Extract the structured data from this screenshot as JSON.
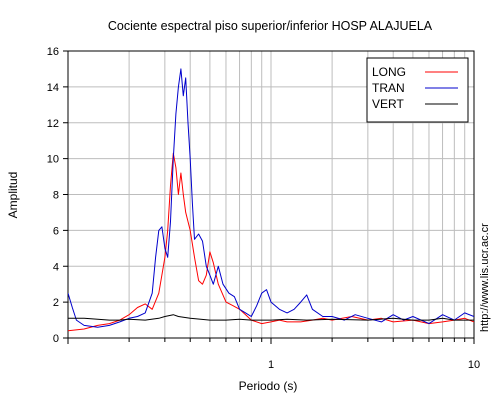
{
  "chart_data": {
    "type": "line",
    "title": "Cociente espectral piso superior/inferior  HOSP ALAJUELA",
    "xlabel": "Periodo (s)",
    "ylabel": "Amplitud",
    "xscale": "log",
    "xlim": [
      0.1,
      10
    ],
    "ylim": [
      0,
      16
    ],
    "grid": true,
    "legend_position": "top-right",
    "x_ticks": [
      {
        "value": 1,
        "label": "1"
      },
      {
        "value": 10,
        "label": "10"
      }
    ],
    "y_ticks": [
      {
        "value": 0,
        "label": "0"
      },
      {
        "value": 2,
        "label": "2"
      },
      {
        "value": 4,
        "label": "4"
      },
      {
        "value": 6,
        "label": "6"
      },
      {
        "value": 8,
        "label": "8"
      },
      {
        "value": 10,
        "label": "10"
      },
      {
        "value": 12,
        "label": "12"
      },
      {
        "value": 14,
        "label": "14"
      },
      {
        "value": 16,
        "label": "16"
      }
    ],
    "series": [
      {
        "name": "LONG",
        "color": "#ff0000",
        "points": [
          [
            0.1,
            0.4
          ],
          [
            0.12,
            0.5
          ],
          [
            0.14,
            0.7
          ],
          [
            0.16,
            0.8
          ],
          [
            0.18,
            1.0
          ],
          [
            0.2,
            1.3
          ],
          [
            0.22,
            1.7
          ],
          [
            0.24,
            1.9
          ],
          [
            0.26,
            1.6
          ],
          [
            0.28,
            2.5
          ],
          [
            0.3,
            4.5
          ],
          [
            0.31,
            6.0
          ],
          [
            0.32,
            8.5
          ],
          [
            0.33,
            10.3
          ],
          [
            0.34,
            9.5
          ],
          [
            0.35,
            8.0
          ],
          [
            0.36,
            9.2
          ],
          [
            0.37,
            8.0
          ],
          [
            0.38,
            7.0
          ],
          [
            0.4,
            6.0
          ],
          [
            0.42,
            4.5
          ],
          [
            0.44,
            3.2
          ],
          [
            0.46,
            3.0
          ],
          [
            0.48,
            3.5
          ],
          [
            0.5,
            4.8
          ],
          [
            0.52,
            4.2
          ],
          [
            0.55,
            3.0
          ],
          [
            0.6,
            2.0
          ],
          [
            0.65,
            1.8
          ],
          [
            0.7,
            1.6
          ],
          [
            0.75,
            1.3
          ],
          [
            0.8,
            1.0
          ],
          [
            0.9,
            0.8
          ],
          [
            1.0,
            0.9
          ],
          [
            1.1,
            1.0
          ],
          [
            1.2,
            0.9
          ],
          [
            1.4,
            0.9
          ],
          [
            1.6,
            1.0
          ],
          [
            1.8,
            1.1
          ],
          [
            2.0,
            1.0
          ],
          [
            2.5,
            1.2
          ],
          [
            3.0,
            1.0
          ],
          [
            3.5,
            1.1
          ],
          [
            4.0,
            0.9
          ],
          [
            5.0,
            1.0
          ],
          [
            6.0,
            0.8
          ],
          [
            7.0,
            0.9
          ],
          [
            8.0,
            1.0
          ],
          [
            9.0,
            1.1
          ],
          [
            10.0,
            0.9
          ]
        ]
      },
      {
        "name": "TRAN",
        "color": "#0000cc",
        "points": [
          [
            0.1,
            2.5
          ],
          [
            0.105,
            1.7
          ],
          [
            0.11,
            1.0
          ],
          [
            0.12,
            0.7
          ],
          [
            0.14,
            0.6
          ],
          [
            0.16,
            0.7
          ],
          [
            0.18,
            0.9
          ],
          [
            0.2,
            1.1
          ],
          [
            0.22,
            1.2
          ],
          [
            0.24,
            1.4
          ],
          [
            0.26,
            2.5
          ],
          [
            0.27,
            4.5
          ],
          [
            0.28,
            6.0
          ],
          [
            0.29,
            6.2
          ],
          [
            0.3,
            5.0
          ],
          [
            0.31,
            4.5
          ],
          [
            0.32,
            6.5
          ],
          [
            0.33,
            10.0
          ],
          [
            0.34,
            12.5
          ],
          [
            0.35,
            14.0
          ],
          [
            0.36,
            15.0
          ],
          [
            0.37,
            13.5
          ],
          [
            0.38,
            14.5
          ],
          [
            0.39,
            12.0
          ],
          [
            0.4,
            10.0
          ],
          [
            0.41,
            7.5
          ],
          [
            0.42,
            5.5
          ],
          [
            0.44,
            5.8
          ],
          [
            0.46,
            5.4
          ],
          [
            0.48,
            4.0
          ],
          [
            0.5,
            3.5
          ],
          [
            0.52,
            3.0
          ],
          [
            0.55,
            4.0
          ],
          [
            0.58,
            3.0
          ],
          [
            0.62,
            2.5
          ],
          [
            0.66,
            2.3
          ],
          [
            0.7,
            1.6
          ],
          [
            0.75,
            1.4
          ],
          [
            0.8,
            1.2
          ],
          [
            0.85,
            1.8
          ],
          [
            0.9,
            2.5
          ],
          [
            0.95,
            2.7
          ],
          [
            1.0,
            2.0
          ],
          [
            1.1,
            1.6
          ],
          [
            1.2,
            1.4
          ],
          [
            1.3,
            1.6
          ],
          [
            1.4,
            2.0
          ],
          [
            1.5,
            2.4
          ],
          [
            1.6,
            1.6
          ],
          [
            1.8,
            1.2
          ],
          [
            2.0,
            1.2
          ],
          [
            2.3,
            1.0
          ],
          [
            2.6,
            1.3
          ],
          [
            3.0,
            1.1
          ],
          [
            3.5,
            0.9
          ],
          [
            4.0,
            1.3
          ],
          [
            4.5,
            1.0
          ],
          [
            5.0,
            1.2
          ],
          [
            6.0,
            0.8
          ],
          [
            7.0,
            1.3
          ],
          [
            8.0,
            1.0
          ],
          [
            9.0,
            1.4
          ],
          [
            10.0,
            1.2
          ]
        ]
      },
      {
        "name": "VERT",
        "color": "#000000",
        "points": [
          [
            0.1,
            1.1
          ],
          [
            0.12,
            1.1
          ],
          [
            0.14,
            1.05
          ],
          [
            0.16,
            1.0
          ],
          [
            0.18,
            1.0
          ],
          [
            0.2,
            1.05
          ],
          [
            0.24,
            1.0
          ],
          [
            0.28,
            1.1
          ],
          [
            0.3,
            1.2
          ],
          [
            0.33,
            1.3
          ],
          [
            0.35,
            1.2
          ],
          [
            0.4,
            1.1
          ],
          [
            0.5,
            1.0
          ],
          [
            0.6,
            1.0
          ],
          [
            0.7,
            1.05
          ],
          [
            0.8,
            1.0
          ],
          [
            1.0,
            1.0
          ],
          [
            1.2,
            1.05
          ],
          [
            1.5,
            1.0
          ],
          [
            2.0,
            1.05
          ],
          [
            3.0,
            1.0
          ],
          [
            4.0,
            1.1
          ],
          [
            5.0,
            1.0
          ],
          [
            6.0,
            1.0
          ],
          [
            7.0,
            1.1
          ],
          [
            8.0,
            1.0
          ],
          [
            10.0,
            1.0
          ]
        ]
      }
    ],
    "credit": "http://www.lis.ucr.ac.cr"
  }
}
